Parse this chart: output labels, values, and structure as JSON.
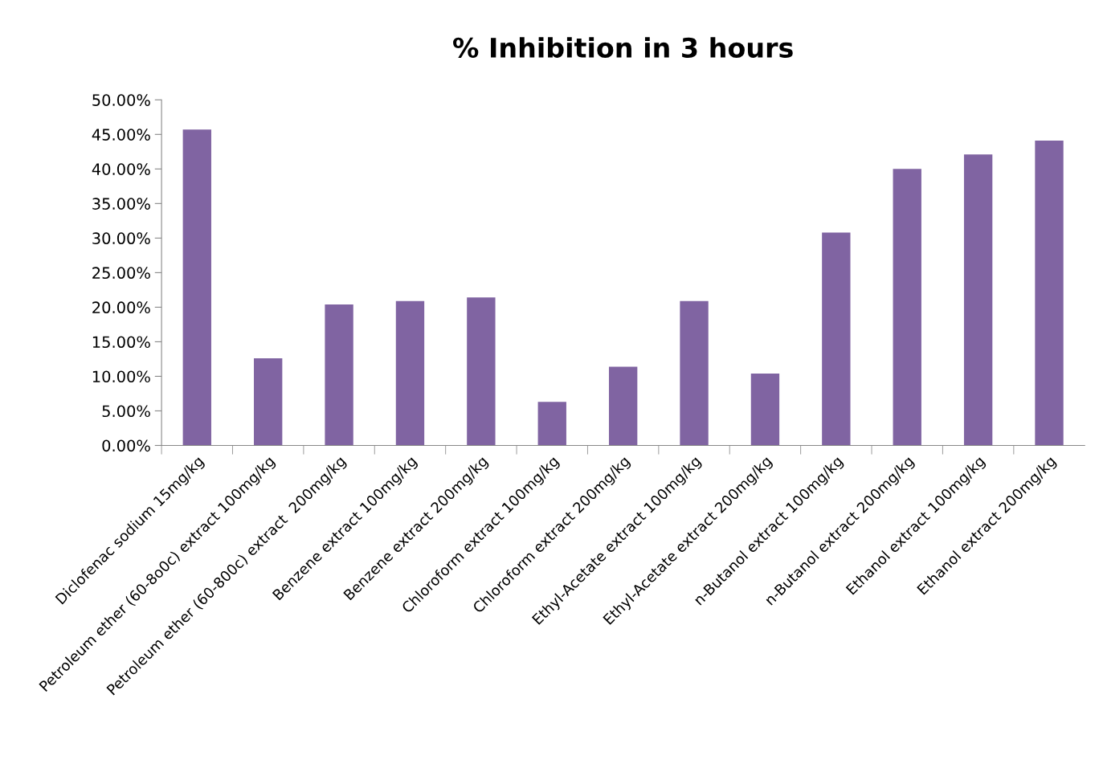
{
  "chart_data": {
    "type": "bar",
    "title": "% Inhibition in 3 hours",
    "categories": [
      "Diclofenac sodium 15mg/kg",
      "Petroleum ether (60-8o0c) extract 100mg/kg",
      "Petroleum ether (60-800c) extract  200mg/kg",
      "Benzene extract 100mg/kg",
      "Benzene extract 200mg/kg",
      "Chloroform extract 100mg/kg",
      "Chloroform extract 200mg/kg",
      "Ethyl-Acetate extract 100mg/kg",
      "Ethyl-Acetate extract 200mg/kg",
      "n-Butanol extract 100mg/kg",
      "n-Butanol extract 200mg/kg",
      "Ethanol extract 100mg/kg",
      "Ethanol extract 200mg/kg"
    ],
    "values": [
      45.7,
      12.6,
      20.4,
      20.9,
      21.4,
      6.3,
      11.4,
      20.9,
      10.4,
      30.8,
      40.0,
      42.1,
      44.1
    ],
    "color": "#8064a2",
    "ylim": [
      0,
      50
    ],
    "yticks": [
      {
        "value": 0,
        "label": "0.00%"
      },
      {
        "value": 5,
        "label": "5.00%"
      },
      {
        "value": 10,
        "label": "10.00%"
      },
      {
        "value": 15,
        "label": "15.00%"
      },
      {
        "value": 20,
        "label": "20.00%"
      },
      {
        "value": 25,
        "label": "25.00%"
      },
      {
        "value": 30,
        "label": "30.00%"
      },
      {
        "value": 35,
        "label": "35.00%"
      },
      {
        "value": 40,
        "label": "40.00%"
      },
      {
        "value": 45,
        "label": "45.00%"
      },
      {
        "value": 50,
        "label": "50.00%"
      }
    ],
    "grid": false
  }
}
